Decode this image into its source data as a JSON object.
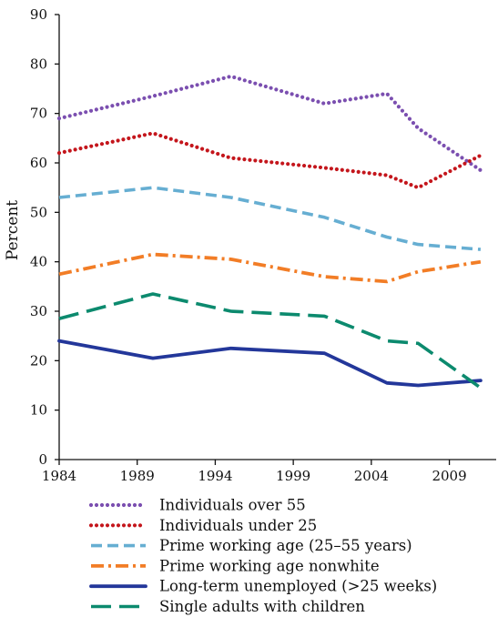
{
  "chart_data": {
    "type": "line",
    "ylabel": "Percent",
    "ylim": [
      0,
      90
    ],
    "xlim": [
      1984,
      2012
    ],
    "yticks": [
      "0",
      "10",
      "20",
      "30",
      "40",
      "50",
      "60",
      "70",
      "80",
      "90"
    ],
    "xticks": [
      "1984",
      "1989",
      "1994",
      "1999",
      "2004",
      "2009"
    ],
    "legend_position": "bottom",
    "series": [
      {
        "name": "Individuals over 55",
        "color": "#7b4fb0",
        "style": "dotted",
        "x": [
          1984,
          1990,
          1995,
          2001,
          2005,
          2007,
          2011
        ],
        "y": [
          69,
          73.5,
          77.5,
          72,
          74,
          67,
          58.5
        ]
      },
      {
        "name": "Individuals under 25",
        "color": "#c4161c",
        "style": "dotted",
        "x": [
          1984,
          1990,
          1995,
          2001,
          2005,
          2007,
          2011
        ],
        "y": [
          62,
          66,
          61,
          59,
          57.5,
          55,
          61.5
        ]
      },
      {
        "name": "Prime working age (25–55 years)",
        "color": "#66aed2",
        "style": "dashed",
        "x": [
          1984,
          1990,
          1995,
          2001,
          2005,
          2007,
          2011
        ],
        "y": [
          53,
          55,
          53,
          49,
          45,
          43.5,
          42.5
        ]
      },
      {
        "name": "Prime working age nonwhite",
        "color": "#f27d26",
        "style": "dashdot",
        "x": [
          1984,
          1990,
          1995,
          2001,
          2005,
          2007,
          2011
        ],
        "y": [
          37.5,
          41.5,
          40.5,
          37,
          36,
          38,
          40
        ]
      },
      {
        "name": "Long-term unemployed (>25 weeks)",
        "color": "#23379a",
        "style": "solid",
        "x": [
          1984,
          1990,
          1995,
          2001,
          2005,
          2007,
          2011
        ],
        "y": [
          24,
          20.5,
          22.5,
          21.5,
          15.5,
          15,
          16
        ]
      },
      {
        "name": "Single adults with children",
        "color": "#0c8a6e",
        "style": "longdash",
        "x": [
          1984,
          1990,
          1995,
          2001,
          2005,
          2007,
          2011
        ],
        "y": [
          28.5,
          33.5,
          30,
          29,
          24,
          23.5,
          14.5
        ]
      }
    ]
  }
}
